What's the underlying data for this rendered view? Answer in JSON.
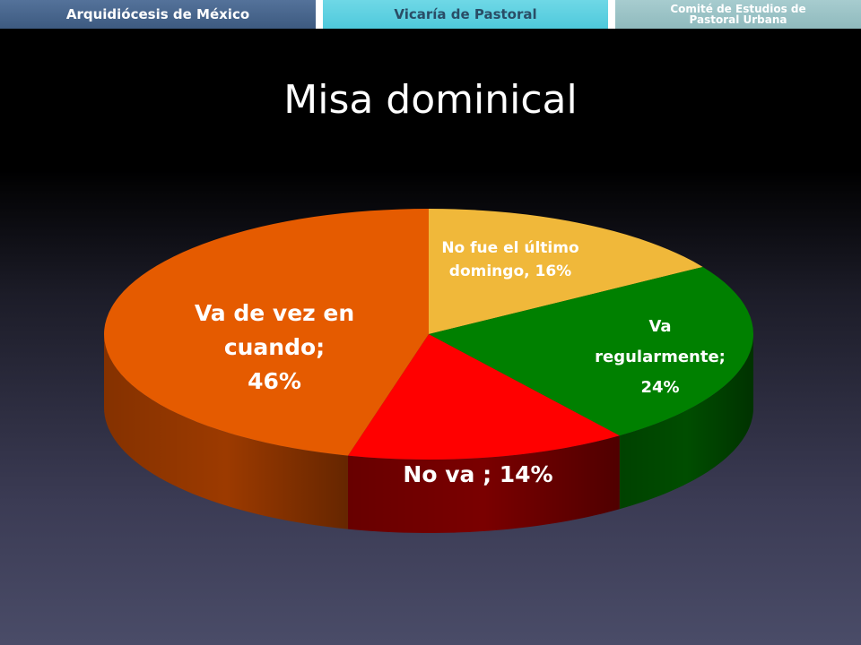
{
  "header": {
    "tabs": [
      {
        "label": "Arquidiócesis de México"
      },
      {
        "label": "Vicaría de Pastoral"
      },
      {
        "label_line1": "Comité de Estudios de",
        "label_line2": "Pastoral Urbana"
      }
    ]
  },
  "chart_data": {
    "type": "pie",
    "title": "Misa dominical",
    "slices": [
      {
        "label_lines": [
          "No fue el último",
          "domingo, 16%"
        ],
        "value": 16,
        "color": "#f0b83a",
        "side_color": "#a87010"
      },
      {
        "label_lines": [
          "Va",
          "regularmente;",
          "24%"
        ],
        "value": 24,
        "color": "#008000",
        "side_color": "#004d00"
      },
      {
        "label_lines": [
          "No va ; 14%"
        ],
        "value": 14,
        "color": "#ff0000",
        "side_color": "#7a0000"
      },
      {
        "label_lines": [
          "Va de vez en",
          "cuando;",
          "46%"
        ],
        "value": 46,
        "color": "#e55b00",
        "side_color": "#9c3a00"
      }
    ],
    "legend": "none"
  }
}
